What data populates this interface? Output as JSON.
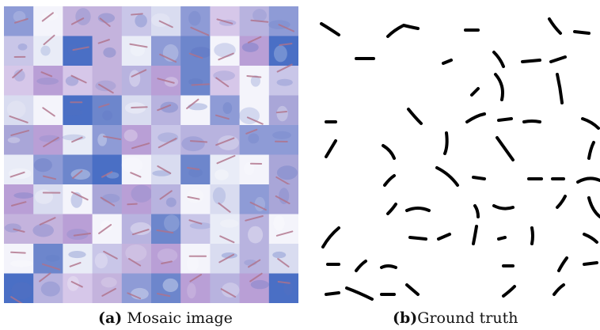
{
  "figure": {
    "panel_a": {
      "label": "(a)",
      "caption": "Mosaic image",
      "grid": {
        "rows": 10,
        "cols": 10
      }
    },
    "panel_b": {
      "label": "(b)",
      "caption": "Ground truth"
    }
  },
  "colors": {
    "tile_palette": [
      "#e9ecf7",
      "#d9dcf0",
      "#c9c6e8",
      "#b8b3df",
      "#a9a6d8",
      "#8e9bd6",
      "#6d86cc",
      "#4a6fc5",
      "#b99fd6",
      "#f4f4fb",
      "#d6c7e9",
      "#c4b3dd"
    ],
    "bacillus": "#b0728a",
    "mask_stroke": "#000000",
    "mask_background": "#ffffff"
  }
}
